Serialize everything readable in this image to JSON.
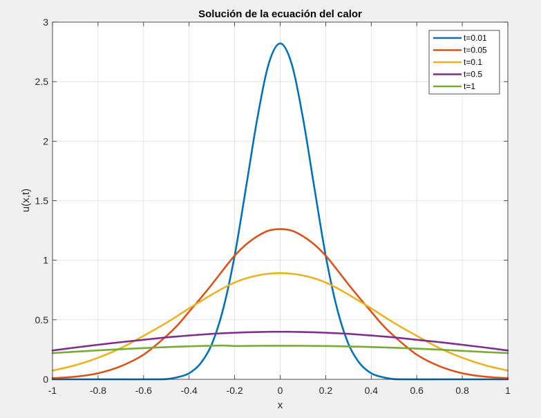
{
  "chart_data": {
    "type": "line",
    "title": "Solución de la ecuación del calor",
    "xlabel": "x",
    "ylabel": "u(x,t)",
    "xlim": [
      -1,
      1
    ],
    "ylim": [
      0,
      3
    ],
    "grid": true,
    "legend_position": "top-right",
    "x_ticks": [
      "-1",
      "-0.8",
      "-0.6",
      "-0.4",
      "-0.2",
      "0",
      "0.2",
      "0.4",
      "0.6",
      "0.8",
      "1"
    ],
    "y_ticks": [
      "0",
      "0.5",
      "1",
      "1.5",
      "2",
      "2.5",
      "3"
    ],
    "x": [
      -1,
      -0.9,
      -0.8,
      -0.7,
      -0.6,
      -0.5,
      -0.45,
      -0.4,
      -0.35,
      -0.3,
      -0.25,
      -0.2,
      -0.15,
      -0.1,
      -0.05,
      0,
      0.05,
      0.1,
      0.15,
      0.2,
      0.25,
      0.3,
      0.35,
      0.4,
      0.45,
      0.5,
      0.6,
      0.7,
      0.8,
      0.9,
      1
    ],
    "series": [
      {
        "name": "t=0.01",
        "color": "#0072BD",
        "values": [
          0,
          0,
          0,
          0,
          0,
          0.002,
          0.018,
          0.051,
          0.133,
          0.297,
          0.594,
          1.038,
          1.611,
          2.195,
          2.652,
          2.821,
          2.652,
          2.195,
          1.611,
          1.038,
          0.594,
          0.297,
          0.133,
          0.051,
          0.018,
          0.002,
          0,
          0,
          0,
          0,
          0
        ]
      },
      {
        "name": "t=0.05",
        "color": "#D95319",
        "values": [
          0.009,
          0.022,
          0.051,
          0.11,
          0.207,
          0.363,
          0.456,
          0.568,
          0.68,
          0.797,
          0.92,
          1.039,
          1.132,
          1.202,
          1.249,
          1.262,
          1.249,
          1.202,
          1.132,
          1.039,
          0.92,
          0.797,
          0.68,
          0.568,
          0.456,
          0.363,
          0.207,
          0.11,
          0.051,
          0.022,
          0.009
        ]
      },
      {
        "name": "t=0.1",
        "color": "#EDB120",
        "values": [
          0.073,
          0.118,
          0.181,
          0.262,
          0.365,
          0.474,
          0.534,
          0.596,
          0.654,
          0.712,
          0.766,
          0.813,
          0.848,
          0.872,
          0.887,
          0.892,
          0.887,
          0.872,
          0.848,
          0.813,
          0.766,
          0.712,
          0.654,
          0.596,
          0.534,
          0.474,
          0.365,
          0.262,
          0.181,
          0.118,
          0.073
        ]
      },
      {
        "name": "t=0.5",
        "color": "#7E2F8E",
        "values": [
          0.242,
          0.267,
          0.29,
          0.312,
          0.332,
          0.352,
          0.36,
          0.368,
          0.375,
          0.382,
          0.387,
          0.391,
          0.395,
          0.397,
          0.399,
          0.399,
          0.399,
          0.397,
          0.395,
          0.391,
          0.387,
          0.382,
          0.375,
          0.368,
          0.36,
          0.352,
          0.332,
          0.312,
          0.29,
          0.267,
          0.242
        ]
      },
      {
        "name": "t=1",
        "color": "#77AC30",
        "values": [
          0.22,
          0.232,
          0.243,
          0.253,
          0.262,
          0.27,
          0.274,
          0.277,
          0.28,
          0.282,
          0.284,
          0.2795,
          0.2805,
          0.2815,
          0.282,
          0.282,
          0.282,
          0.2815,
          0.2805,
          0.2795,
          0.278,
          0.276,
          0.274,
          0.271,
          0.268,
          0.265,
          0.258,
          0.249,
          0.239,
          0.229,
          0.22
        ]
      }
    ]
  }
}
